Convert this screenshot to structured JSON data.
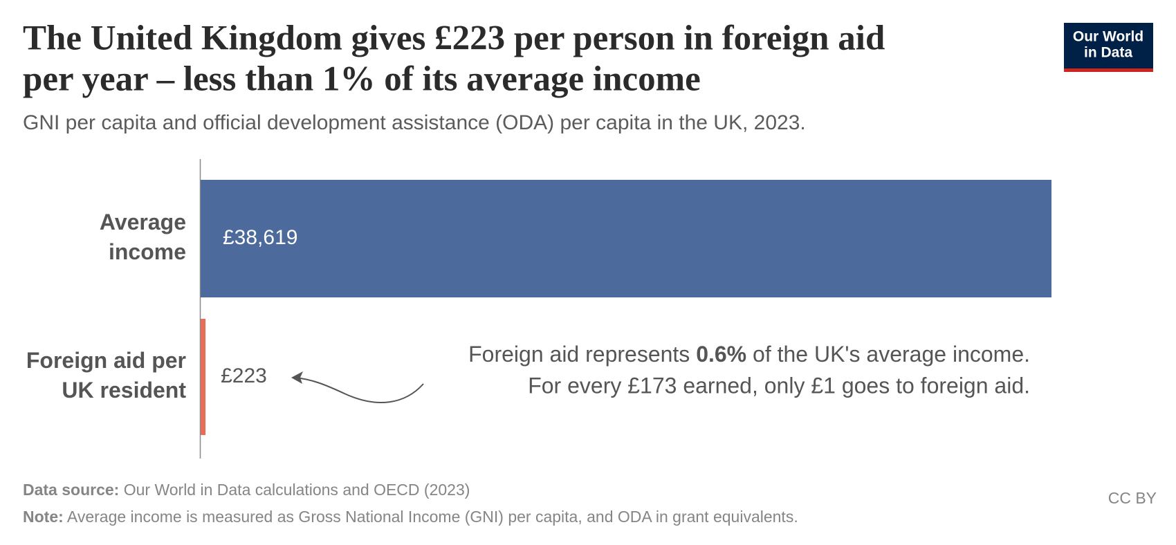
{
  "chart_data": {
    "type": "bar",
    "orientation": "horizontal",
    "title": [
      "The United Kingdom gives £223 per person in foreign aid",
      "per year – less than 1% of its average income"
    ],
    "subtitle": "GNI per capita and official development assistance (ODA) per capita in the UK, 2023.",
    "categories": [
      [
        "Average",
        "income"
      ],
      [
        "Foreign aid per",
        "UK resident"
      ]
    ],
    "values": [
      38619,
      223
    ],
    "value_labels": [
      "£38,619",
      "£223"
    ],
    "colors": [
      "#4c6a9c",
      "#e56e5a"
    ],
    "xlim": [
      0,
      38619
    ],
    "annotation": [
      [
        "Foreign aid represents ",
        "0.6%",
        " of the UK's average income."
      ],
      "For every £173 earned, only £1 goes to foreign aid."
    ],
    "source": [
      "Data source:",
      " Our World in Data calculations and OECD (2023)"
    ],
    "note": [
      "Note:",
      " Average income is measured as Gross National Income (GNI) per capita, and ODA in grant equivalents."
    ],
    "license": "CC BY",
    "logo": [
      "Our World",
      "in Data"
    ]
  }
}
